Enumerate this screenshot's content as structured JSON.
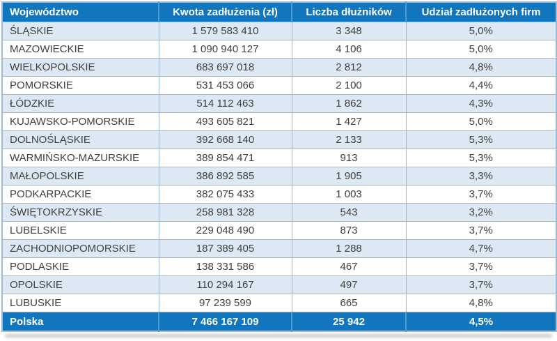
{
  "chart_data": {
    "type": "table",
    "columns": [
      "Województwo",
      "Kwota zadłużenia (zł)",
      "Liczba dłużników",
      "Udział zadłużonych firm"
    ],
    "rows": [
      [
        "ŚLĄSKIE",
        "1 579 583 410",
        "3 348",
        "5,0%"
      ],
      [
        "MAZOWIECKIE",
        "1 090 940 127",
        "4 106",
        "5,0%"
      ],
      [
        "WIELKOPOLSKIE",
        "683 697 018",
        "2 812",
        "4,8%"
      ],
      [
        "POMORSKIE",
        "531 453 066",
        "2 100",
        "4,4%"
      ],
      [
        "ŁÓDZKIE",
        "514 112 463",
        "1 862",
        "4,3%"
      ],
      [
        "KUJAWSKO-POMORSKIE",
        "493 605 821",
        "1 427",
        "5,0%"
      ],
      [
        "DOLNOŚLĄSKIE",
        "392 668 140",
        "2 133",
        "5,3%"
      ],
      [
        "WARMIŃSKO-MAZURSKIE",
        "389 854 471",
        "913",
        "5,3%"
      ],
      [
        "MAŁOPOLSKIE",
        "386 892 585",
        "1 905",
        "3,3%"
      ],
      [
        "PODKARPACKIE",
        "382 075 433",
        "1 003",
        "3,7%"
      ],
      [
        "ŚWIĘTOKRZYSKIE",
        "258 981 328",
        "543",
        "3,2%"
      ],
      [
        "LUBELSKIE",
        "229 048 490",
        "873",
        "3,7%"
      ],
      [
        "ZACHODNIOPOMORSKIE",
        "187 389 405",
        "1 288",
        "4,7%"
      ],
      [
        "PODLASKIE",
        "138 331 586",
        "467",
        "3,7%"
      ],
      [
        "OPOLSKIE",
        "110 294 167",
        "497",
        "3,7%"
      ],
      [
        "LUBUSKIE",
        "97 239 599",
        "665",
        "4,8%"
      ]
    ],
    "footer": [
      "Polska",
      "7 466 167 109",
      "25 942",
      "4,5%"
    ]
  },
  "colors": {
    "header_bg": "#1176BE",
    "footer_bg": "#1176BE",
    "stripe_row_bg": "#DCE9F5",
    "white_row_bg": "#FFFFFF",
    "grid_border": "#9DBAD4",
    "header_text": "#FFFFFF",
    "body_text": "#3F3F3F"
  }
}
